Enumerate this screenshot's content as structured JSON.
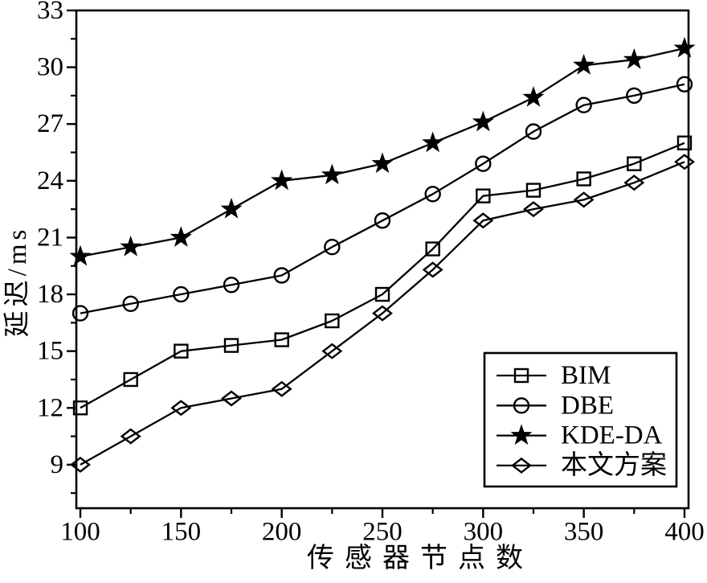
{
  "figure": {
    "background": "#ffffff",
    "ink_color": "#000000"
  },
  "chart_data": {
    "type": "line",
    "title": "",
    "xlabel": "传感器节点数",
    "ylabel": "延迟/ms",
    "x": [
      100,
      125,
      150,
      175,
      200,
      225,
      250,
      275,
      300,
      325,
      350,
      375,
      400
    ],
    "series": [
      {
        "name": "BIM",
        "slug": "bim",
        "marker": "square",
        "values": [
          12,
          13.5,
          15,
          15.3,
          15.6,
          16.6,
          18,
          20.4,
          23.2,
          23.5,
          24.1,
          24.9,
          26
        ]
      },
      {
        "name": "DBE",
        "slug": "dbe",
        "marker": "circle",
        "values": [
          17,
          17.5,
          18,
          18.5,
          19,
          20.5,
          21.9,
          23.3,
          24.9,
          26.6,
          28,
          28.5,
          29.1
        ]
      },
      {
        "name": "KDE-DA",
        "slug": "kde-da",
        "marker": "star",
        "values": [
          20,
          20.5,
          21,
          22.5,
          24,
          24.3,
          24.9,
          26,
          27.1,
          28.4,
          30.1,
          30.4,
          31
        ]
      },
      {
        "name": "本文方案",
        "slug": "proposed",
        "marker": "diamond",
        "values": [
          9,
          10.5,
          12,
          12.5,
          13,
          15,
          17,
          19.3,
          21.9,
          22.5,
          23,
          23.9,
          25
        ]
      }
    ],
    "xlim": [
      98,
      402
    ],
    "ylim": [
      6.7,
      33
    ],
    "x_major_ticks": [
      100,
      150,
      200,
      250,
      300,
      350,
      400
    ],
    "x_minor_ticks": [
      125,
      175,
      225,
      275,
      325,
      375
    ],
    "y_major_ticks": [
      9,
      12,
      15,
      18,
      21,
      24,
      27,
      30,
      33
    ],
    "y_minor_ticks": [
      7.5,
      10.5,
      13.5,
      16.5,
      19.5,
      22.5,
      25.5,
      28.5,
      31.5
    ],
    "grid": false,
    "legend": {
      "position": "lower-right-inside",
      "labels": [
        "BIM",
        "DBE",
        "KDE-DA",
        "本文方案"
      ]
    },
    "line_color": "#000000",
    "background": "#ffffff"
  }
}
